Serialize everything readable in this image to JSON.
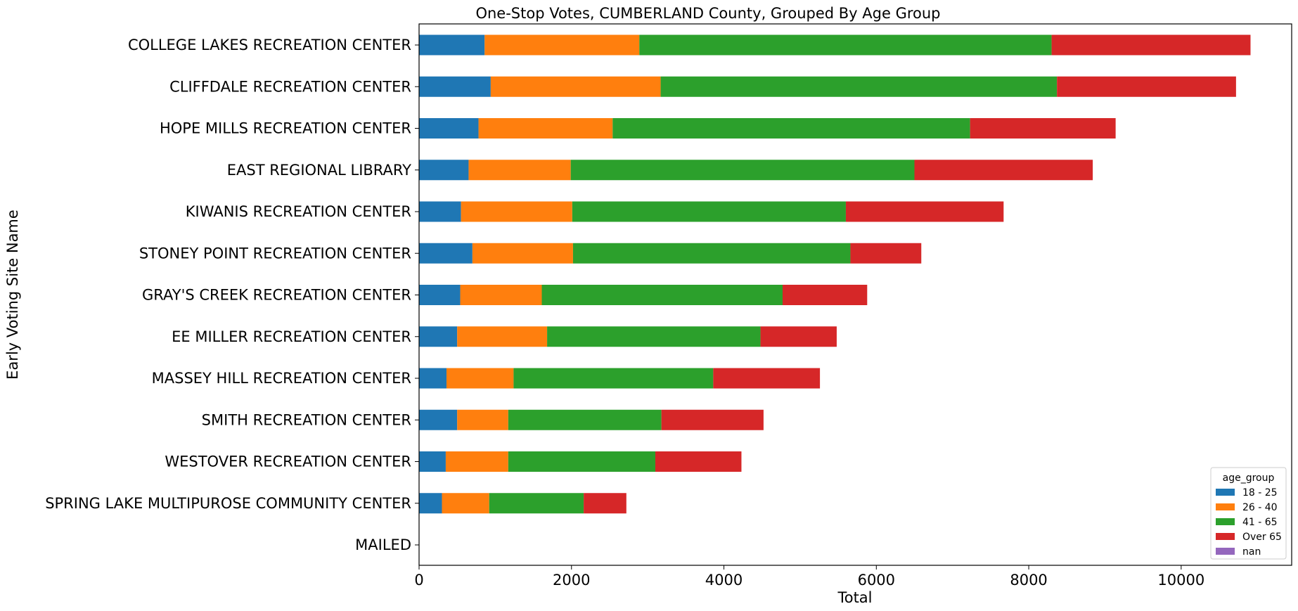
{
  "chart_data": {
    "type": "bar",
    "orientation": "horizontal",
    "stacked": true,
    "title": "One-Stop Votes, CUMBERLAND County, Grouped By Age Group",
    "xlabel": "Total",
    "ylabel": "Early Voting Site Name",
    "xlim": [
      0,
      11450
    ],
    "xticks": [
      0,
      2000,
      4000,
      6000,
      8000,
      10000
    ],
    "grid": false,
    "legend_title": "age_group",
    "legend_position": "lower-right",
    "categories": [
      "COLLEGE LAKES RECREATION CENTER",
      "CLIFFDALE RECREATION CENTER",
      "HOPE MILLS RECREATION CENTER",
      "EAST REGIONAL LIBRARY",
      "KIWANIS RECREATION CENTER",
      "STONEY POINT RECREATION CENTER",
      "GRAY'S CREEK RECREATION CENTER",
      "EE MILLER RECREATION CENTER",
      "MASSEY HILL RECREATION CENTER",
      "SMITH RECREATION CENTER",
      "WESTOVER RECREATION CENTER",
      "SPRING LAKE MULTIPUROSE COMMUNITY CENTER",
      "MAILED"
    ],
    "series": [
      {
        "name": "18 - 25",
        "color": "#1f77b4",
        "values": [
          860,
          940,
          780,
          650,
          550,
          700,
          540,
          500,
          360,
          500,
          350,
          300,
          0
        ]
      },
      {
        "name": "26 - 40",
        "color": "#ff7f0e",
        "values": [
          2030,
          2230,
          1760,
          1340,
          1460,
          1320,
          1070,
          1180,
          880,
          670,
          820,
          620,
          0
        ]
      },
      {
        "name": "41 - 65",
        "color": "#2ca02c",
        "values": [
          5410,
          5200,
          4690,
          4510,
          3590,
          3640,
          3160,
          2800,
          2620,
          2010,
          1930,
          1240,
          0
        ]
      },
      {
        "name": "Over 65",
        "color": "#d62728",
        "values": [
          2610,
          2350,
          1910,
          2340,
          2070,
          930,
          1110,
          1000,
          1400,
          1340,
          1130,
          560,
          0
        ]
      },
      {
        "name": "nan",
        "color": "#9467bd",
        "values": [
          0,
          0,
          0,
          0,
          0,
          0,
          0,
          0,
          0,
          0,
          0,
          0,
          0
        ]
      }
    ]
  }
}
